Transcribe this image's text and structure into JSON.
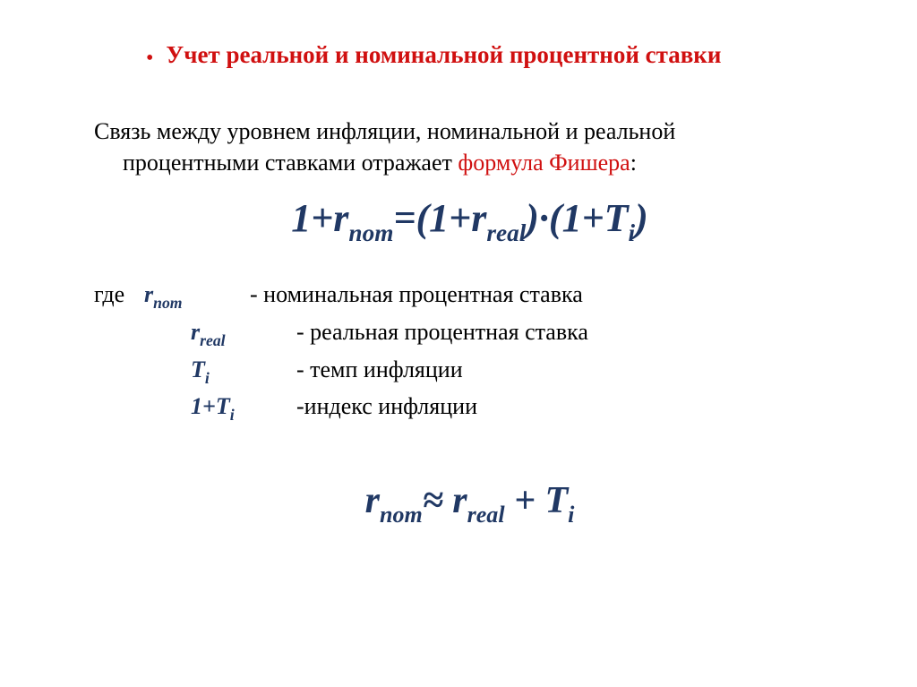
{
  "colors": {
    "red": "#d01010",
    "navy": "#203864",
    "black": "#000000",
    "background": "#ffffff"
  },
  "title": {
    "bullet": "•",
    "text": "Учет реальной и номинальной процентной ставки"
  },
  "intro": {
    "line1": "Связь между уровнем инфляции, номинальной и реальной",
    "line2_a": "процентными ставками отражает ",
    "line2_b": "формула Фишера",
    "line2_c": ":"
  },
  "formula1": {
    "p1": "1+r",
    "s1": "nom",
    "p2": "=(1+r",
    "s2": "real",
    "p3": ")·(1+T",
    "s3": "i",
    "p4": ")"
  },
  "defs": {
    "where": "где",
    "r1_sym_a": "r",
    "r1_sym_b": "nom",
    "r1_desc": "- номинальная процентная ставка",
    "r2_sym_a": "r",
    "r2_sym_b": "real",
    "r2_desc": "- реальная процентная ставка",
    "r3_sym_a": "T",
    "r3_sym_b": "i",
    "r3_desc": "- темп инфляции",
    "r4_sym_a": "1+T",
    "r4_sym_b": "i",
    "r4_desc": "-индекс инфляции"
  },
  "formula2": {
    "p1": "r",
    "s1": "nom",
    "p2": "≈  r",
    "s2": "real",
    "p3": "  + T",
    "s3": "i"
  },
  "typography": {
    "title_fontsize": 27,
    "body_fontsize": 26,
    "formula_fontsize": 44,
    "formula2_fontsize": 42,
    "font_family": "Times New Roman"
  }
}
